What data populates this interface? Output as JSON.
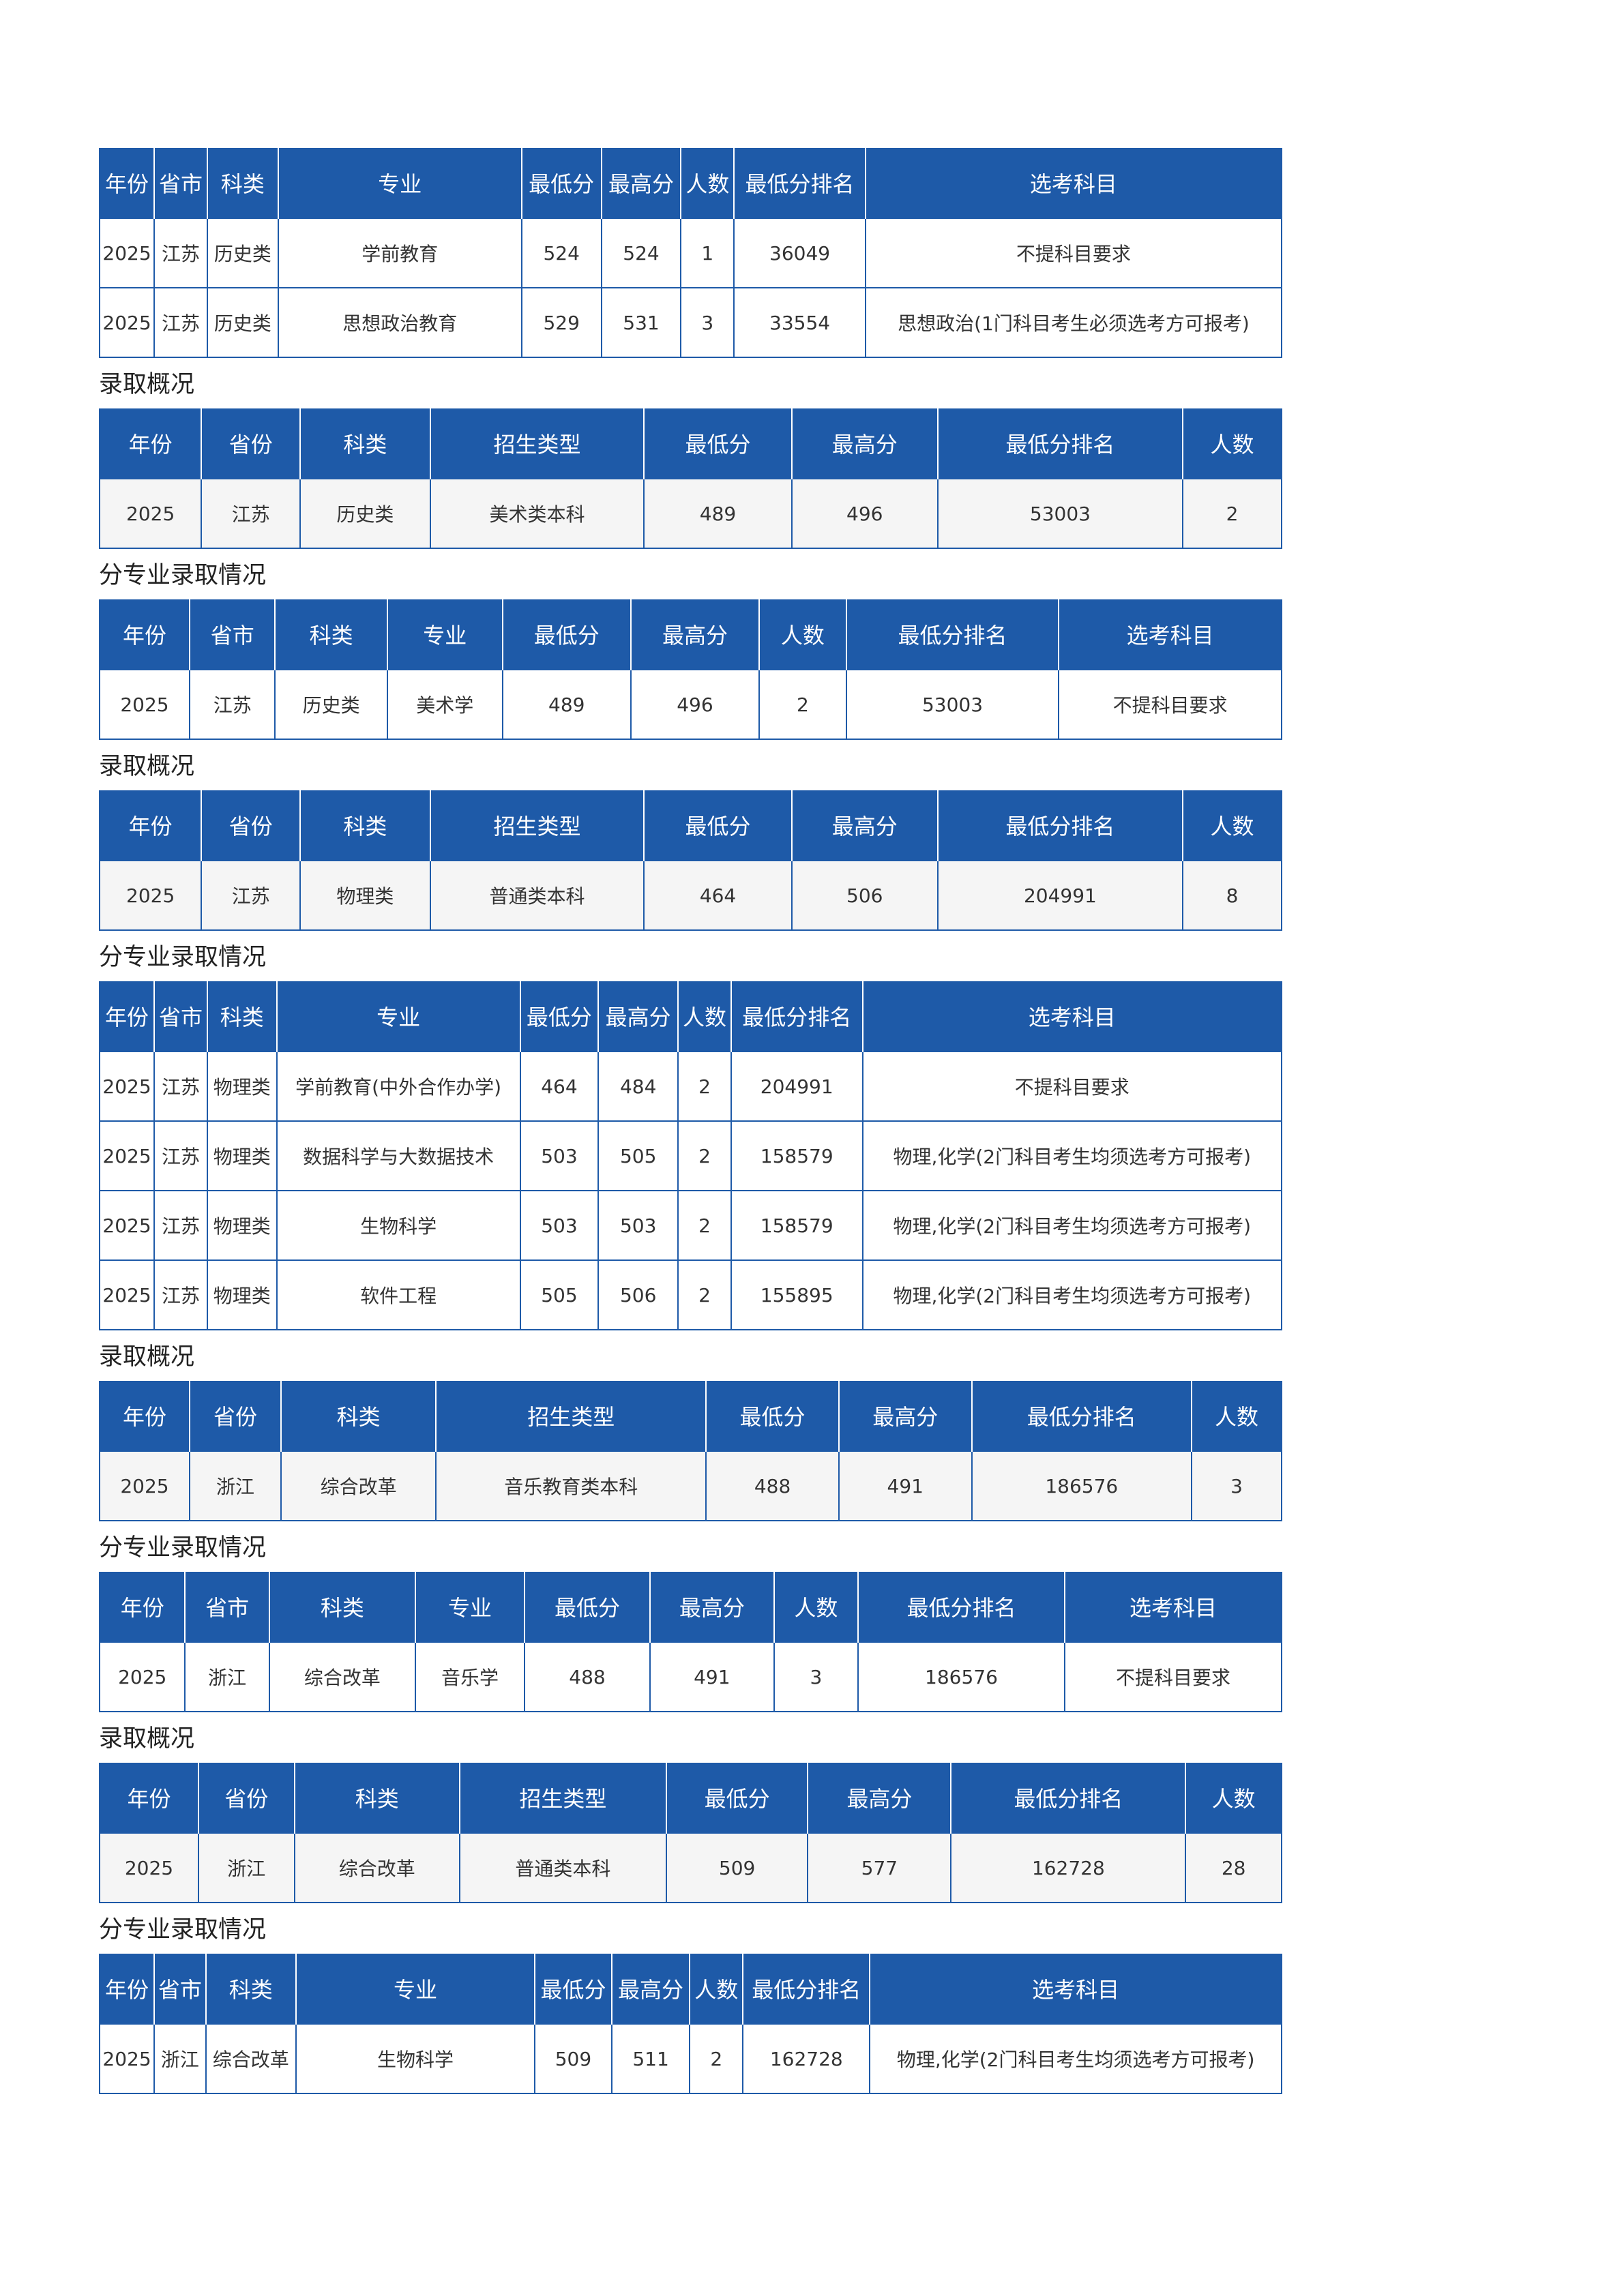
{
  "colors": {
    "header_bg": "#1e5aa8",
    "border": "#1e5aa8",
    "summary_row_bg": "#f5f5f5"
  },
  "sections": [
    {
      "label": "",
      "type": "detail",
      "headers": [
        "年份",
        "省市",
        "科类",
        "专业",
        "最低分",
        "最高分",
        "人数",
        "最低分排名",
        "选考科目"
      ],
      "rows": [
        [
          "2025",
          "江苏",
          "历史类",
          "学前教育",
          "524",
          "524",
          "1",
          "36049",
          "不提科目要求"
        ],
        [
          "2025",
          "江苏",
          "历史类",
          "思想政治教育",
          "529",
          "531",
          "3",
          "33554",
          "思想政治(1门科目考生必须选考方可报考)"
        ]
      ]
    },
    {
      "label": "录取概况",
      "type": "summary",
      "headers": [
        "年份",
        "省份",
        "科类",
        "招生类型",
        "最低分",
        "最高分",
        "最低分排名",
        "人数"
      ],
      "rows": [
        [
          "2025",
          "江苏",
          "历史类",
          "美术类本科",
          "489",
          "496",
          "53003",
          "2"
        ]
      ]
    },
    {
      "label": "分专业录取情况",
      "type": "detail",
      "headers": [
        "年份",
        "省市",
        "科类",
        "专业",
        "最低分",
        "最高分",
        "人数",
        "最低分排名",
        "选考科目"
      ],
      "rows": [
        [
          "2025",
          "江苏",
          "历史类",
          "美术学",
          "489",
          "496",
          "2",
          "53003",
          "不提科目要求"
        ]
      ]
    },
    {
      "label": "录取概况",
      "type": "summary",
      "headers": [
        "年份",
        "省份",
        "科类",
        "招生类型",
        "最低分",
        "最高分",
        "最低分排名",
        "人数"
      ],
      "rows": [
        [
          "2025",
          "江苏",
          "物理类",
          "普通类本科",
          "464",
          "506",
          "204991",
          "8"
        ]
      ]
    },
    {
      "label": "分专业录取情况",
      "type": "detail",
      "headers": [
        "年份",
        "省市",
        "科类",
        "专业",
        "最低分",
        "最高分",
        "人数",
        "最低分排名",
        "选考科目"
      ],
      "rows": [
        [
          "2025",
          "江苏",
          "物理类",
          "学前教育(中外合作办学)",
          "464",
          "484",
          "2",
          "204991",
          "不提科目要求"
        ],
        [
          "2025",
          "江苏",
          "物理类",
          "数据科学与大数据技术",
          "503",
          "505",
          "2",
          "158579",
          "物理,化学(2门科目考生均须选考方可报考)"
        ],
        [
          "2025",
          "江苏",
          "物理类",
          "生物科学",
          "503",
          "503",
          "2",
          "158579",
          "物理,化学(2门科目考生均须选考方可报考)"
        ],
        [
          "2025",
          "江苏",
          "物理类",
          "软件工程",
          "505",
          "506",
          "2",
          "155895",
          "物理,化学(2门科目考生均须选考方可报考)"
        ]
      ]
    },
    {
      "label": "录取概况",
      "type": "summary",
      "headers": [
        "年份",
        "省份",
        "科类",
        "招生类型",
        "最低分",
        "最高分",
        "最低分排名",
        "人数"
      ],
      "rows": [
        [
          "2025",
          "浙江",
          "综合改革",
          "音乐教育类本科",
          "488",
          "491",
          "186576",
          "3"
        ]
      ]
    },
    {
      "label": "分专业录取情况",
      "type": "detail",
      "headers": [
        "年份",
        "省市",
        "科类",
        "专业",
        "最低分",
        "最高分",
        "人数",
        "最低分排名",
        "选考科目"
      ],
      "rows": [
        [
          "2025",
          "浙江",
          "综合改革",
          "音乐学",
          "488",
          "491",
          "3",
          "186576",
          "不提科目要求"
        ]
      ]
    },
    {
      "label": "录取概况",
      "type": "summary",
      "headers": [
        "年份",
        "省份",
        "科类",
        "招生类型",
        "最低分",
        "最高分",
        "最低分排名",
        "人数"
      ],
      "rows": [
        [
          "2025",
          "浙江",
          "综合改革",
          "普通类本科",
          "509",
          "577",
          "162728",
          "28"
        ]
      ]
    },
    {
      "label": "分专业录取情况",
      "type": "detail",
      "headers": [
        "年份",
        "省市",
        "科类",
        "专业",
        "最低分",
        "最高分",
        "人数",
        "最低分排名",
        "选考科目"
      ],
      "rows": [
        [
          "2025",
          "浙江",
          "综合改革",
          "生物科学",
          "509",
          "511",
          "2",
          "162728",
          "物理,化学(2门科目考生均须选考方可报考)"
        ]
      ]
    }
  ]
}
